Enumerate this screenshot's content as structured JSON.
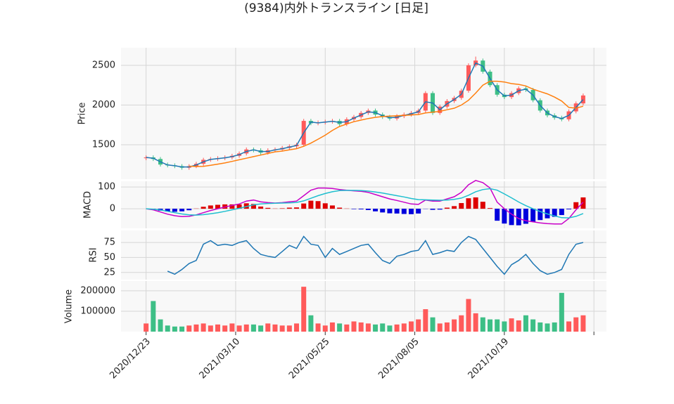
{
  "chart_data": {
    "type": "candlestick",
    "title": "(9384)内外トランスライン [日足]",
    "x": [
      0,
      4,
      8,
      12,
      16,
      20,
      24,
      28,
      32,
      36,
      40,
      44,
      48,
      52,
      56,
      60,
      64,
      68,
      72,
      76,
      80,
      84,
      88,
      92,
      96,
      100,
      104,
      108,
      112,
      116,
      120,
      124,
      128,
      132,
      136,
      140,
      144,
      148,
      152,
      156,
      160,
      164,
      168,
      172,
      176,
      180,
      184,
      188,
      192,
      196,
      200,
      204,
      208,
      212,
      216,
      220,
      224,
      228,
      232,
      236,
      240,
      244
    ],
    "xlim": [
      -14,
      257
    ],
    "xticks": [
      {
        "value": 0,
        "label": "2020/12/23"
      },
      {
        "value": 50,
        "label": "2021/03/10"
      },
      {
        "value": 100,
        "label": "2021/05/25"
      },
      {
        "value": 150,
        "label": "2021/08/05"
      },
      {
        "value": 200,
        "label": "2021/10/19"
      },
      {
        "value": 250,
        "label": null
      }
    ],
    "grid": true,
    "panels": [
      {
        "type": "candlestick",
        "ylabel": "Price",
        "ylim": [
          1066,
          2721
        ],
        "yticks": [
          1500,
          2000,
          2500
        ],
        "up_color": "#ff5a5a",
        "down_color": "#3dbf86",
        "open": [
          1330,
          1340,
          1320,
          1250,
          1240,
          1230,
          1210,
          1230,
          1260,
          1310,
          1320,
          1330,
          1340,
          1360,
          1390,
          1440,
          1430,
          1400,
          1430,
          1440,
          1460,
          1480,
          1500,
          1800,
          1770,
          1780,
          1790,
          1800,
          1760,
          1820,
          1850,
          1900,
          1930,
          1880,
          1850,
          1830,
          1860,
          1880,
          1900,
          1930,
          2150,
          1900,
          1980,
          2050,
          2090,
          2180,
          2500,
          2560,
          2420,
          2250,
          2130,
          2100,
          2150,
          2210,
          2190,
          2060,
          1930,
          1870,
          1840,
          1820,
          1920,
          2020
        ],
        "high": [
          1365,
          1365,
          1345,
          1275,
          1265,
          1255,
          1255,
          1285,
          1335,
          1345,
          1355,
          1365,
          1385,
          1415,
          1465,
          1465,
          1455,
          1455,
          1465,
          1485,
          1505,
          1525,
          1825,
          1825,
          1805,
          1815,
          1825,
          1825,
          1845,
          1875,
          1925,
          1955,
          1955,
          1905,
          1875,
          1885,
          1905,
          1925,
          1955,
          2175,
          2175,
          2005,
          2075,
          2115,
          2205,
          2525,
          2610,
          2585,
          2445,
          2275,
          2155,
          2175,
          2235,
          2235,
          2215,
          2085,
          1955,
          1895,
          1865,
          1945,
          2045,
          2145
        ],
        "low": [
          1305,
          1295,
          1225,
          1215,
          1205,
          1185,
          1185,
          1205,
          1235,
          1285,
          1295,
          1305,
          1315,
          1335,
          1365,
          1405,
          1375,
          1375,
          1405,
          1415,
          1435,
          1455,
          1475,
          1745,
          1745,
          1755,
          1765,
          1735,
          1735,
          1795,
          1825,
          1875,
          1855,
          1825,
          1805,
          1805,
          1835,
          1855,
          1875,
          1905,
          1875,
          1875,
          1955,
          2025,
          2065,
          2155,
          2475,
          2395,
          2225,
          2105,
          2075,
          2075,
          2125,
          2165,
          2035,
          1905,
          1845,
          1815,
          1795,
          1795,
          1895,
          1995
        ],
        "close": [
          1340,
          1320,
          1250,
          1240,
          1230,
          1210,
          1230,
          1260,
          1310,
          1320,
          1330,
          1340,
          1360,
          1390,
          1440,
          1430,
          1400,
          1430,
          1440,
          1460,
          1480,
          1500,
          1800,
          1770,
          1780,
          1790,
          1800,
          1760,
          1820,
          1850,
          1900,
          1930,
          1880,
          1850,
          1830,
          1860,
          1880,
          1900,
          1930,
          2150,
          1900,
          1980,
          2050,
          2090,
          2180,
          2500,
          2560,
          2420,
          2250,
          2130,
          2100,
          2150,
          2210,
          2190,
          2060,
          1930,
          1870,
          1840,
          1820,
          1920,
          2020,
          2120
        ],
        "series": [
          {
            "color": "#1f77b4",
            "values": [
              1340,
              1330,
              1285,
              1245,
              1235,
              1220,
              1220,
              1245,
              1285,
              1315,
              1325,
              1335,
              1350,
              1375,
              1415,
              1435,
              1415,
              1415,
              1435,
              1450,
              1470,
              1490,
              1650,
              1785,
              1775,
              1785,
              1795,
              1780,
              1790,
              1835,
              1875,
              1915,
              1905,
              1865,
              1840,
              1845,
              1870,
              1890,
              1915,
              2040,
              2025,
              1940,
              2015,
              2070,
              2135,
              2340,
              2530,
              2490,
              2335,
              2190,
              2115,
              2125,
              2180,
              2200,
              2125,
              1995,
              1900,
              1855,
              1830,
              1870,
              1970,
              2070
            ]
          },
          {
            "color": "#ff7f0e",
            "values": [
              null,
              null,
              null,
              null,
              null,
              null,
              1230,
              1225,
              1228,
              1240,
              1255,
              1270,
              1290,
              1310,
              1330,
              1350,
              1370,
              1390,
              1410,
              1420,
              1435,
              1450,
              1480,
              1520,
              1570,
              1620,
              1680,
              1730,
              1760,
              1790,
              1810,
              1830,
              1845,
              1855,
              1860,
              1865,
              1870,
              1875,
              1880,
              1900,
              1910,
              1920,
              1940,
              1960,
              2000,
              2060,
              2150,
              2250,
              2300,
              2300,
              2290,
              2270,
              2260,
              2240,
              2200,
              2170,
              2140,
              2100,
              2050,
              1970,
              1960,
              1985
            ]
          }
        ]
      },
      {
        "type": "line",
        "ylabel": "MACD",
        "ylim": [
          -90,
          126
        ],
        "yticks": [
          0,
          100
        ],
        "series": [
          {
            "color": "#c800c8",
            "values": [
              0,
              -5,
              -15,
              -25,
              -32,
              -36,
              -35,
              -28,
              -18,
              -8,
              0,
              8,
              15,
              22,
              35,
              40,
              32,
              28,
              26,
              28,
              32,
              35,
              60,
              85,
              95,
              95,
              93,
              88,
              85,
              82,
              80,
              75,
              65,
              55,
              45,
              38,
              30,
              22,
              20,
              40,
              35,
              35,
              45,
              55,
              75,
              110,
              130,
              120,
              95,
              30,
              0,
              -25,
              -45,
              -55,
              -60,
              -65,
              -68,
              -70,
              -70,
              -45,
              -5,
              30
            ]
          },
          {
            "color": "#1fbfcf",
            "values": [
              0,
              -2,
              -6,
              -12,
              -18,
              -24,
              -28,
              -29,
              -27,
              -23,
              -18,
              -12,
              -5,
              2,
              10,
              18,
              22,
              24,
              25,
              26,
              27,
              29,
              36,
              48,
              60,
              70,
              78,
              83,
              84,
              84,
              83,
              81,
              77,
              72,
              66,
              60,
              54,
              47,
              42,
              41,
              40,
              39,
              40,
              43,
              49,
              62,
              78,
              88,
              92,
              85,
              68,
              50,
              31,
              14,
              0,
              -13,
              -24,
              -33,
              -41,
              -42,
              -35,
              -22
            ]
          }
        ],
        "histogram": {
          "up_color": "#dd0000",
          "down_color": "#0000dd",
          "values": [
            0,
            -3,
            -9,
            -13,
            -14,
            -12,
            -7,
            1,
            9,
            15,
            18,
            20,
            20,
            20,
            25,
            22,
            10,
            4,
            1,
            2,
            5,
            6,
            24,
            37,
            35,
            25,
            15,
            5,
            1,
            -2,
            -3,
            -6,
            -12,
            -17,
            -21,
            -22,
            -24,
            -25,
            -22,
            -1,
            -5,
            -4,
            5,
            12,
            26,
            48,
            52,
            32,
            3,
            -55,
            -68,
            -75,
            -76,
            -69,
            -60,
            -52,
            -44,
            -37,
            -29,
            -3,
            30,
            52
          ]
        }
      },
      {
        "type": "line",
        "ylabel": "RSI",
        "ylim": [
          13,
          95
        ],
        "yticks": [
          25,
          50,
          75
        ],
        "series": [
          {
            "color": "#1f77b4",
            "values": [
              null,
              null,
              null,
              27,
              22,
              30,
              40,
              45,
              72,
              78,
              70,
              72,
              70,
              75,
              78,
              65,
              55,
              52,
              50,
              60,
              70,
              65,
              85,
              72,
              70,
              50,
              65,
              55,
              60,
              65,
              70,
              72,
              58,
              45,
              40,
              52,
              55,
              60,
              62,
              78,
              55,
              58,
              62,
              60,
              75,
              85,
              80,
              65,
              50,
              35,
              22,
              38,
              45,
              55,
              40,
              28,
              22,
              25,
              30,
              55,
              72,
              75
            ]
          }
        ]
      },
      {
        "type": "bar",
        "ylabel": "Volume",
        "ylim": [
          0,
          248000
        ],
        "yticks": [
          100000,
          200000
        ],
        "values": [
          40000,
          150000,
          60000,
          30000,
          25000,
          25000,
          30000,
          35000,
          40000,
          30000,
          35000,
          30000,
          40000,
          30000,
          35000,
          35000,
          30000,
          40000,
          35000,
          30000,
          30000,
          40000,
          220000,
          80000,
          40000,
          30000,
          45000,
          40000,
          35000,
          50000,
          45000,
          40000,
          35000,
          40000,
          30000,
          35000,
          40000,
          50000,
          60000,
          110000,
          70000,
          40000,
          45000,
          60000,
          80000,
          160000,
          90000,
          70000,
          60000,
          60000,
          50000,
          65000,
          55000,
          80000,
          60000,
          45000,
          40000,
          45000,
          190000,
          50000,
          70000,
          80000
        ]
      }
    ]
  }
}
